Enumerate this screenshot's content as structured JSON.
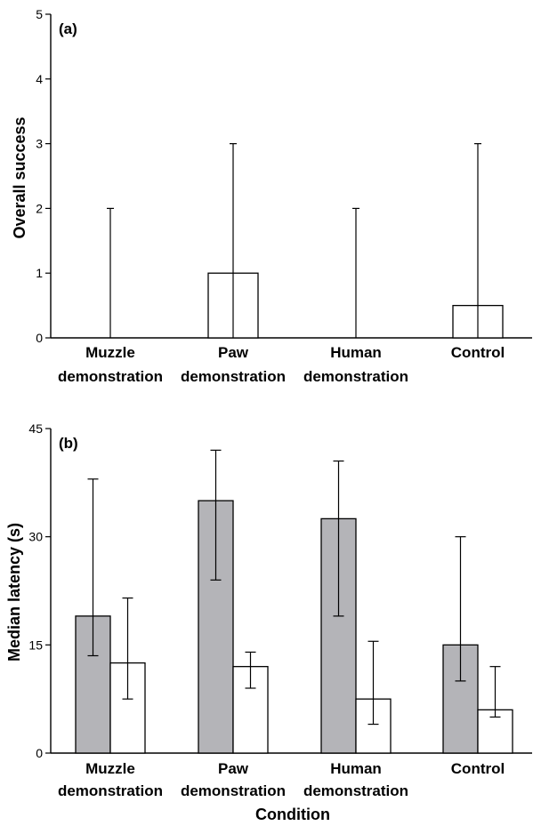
{
  "chart_data": [
    {
      "type": "bar",
      "panel_label": "(a)",
      "ylabel": "Overall success",
      "xlabel": "",
      "ylim": [
        0,
        5
      ],
      "yticks": [
        "0",
        "1",
        "2",
        "3",
        "4",
        "5"
      ],
      "categories": [
        [
          "Muzzle",
          "demonstration"
        ],
        [
          "Paw",
          "demonstration"
        ],
        [
          "Human",
          "demonstration"
        ],
        [
          "Control"
        ]
      ],
      "series": [
        {
          "fill": "#ffffff",
          "values": [
            0,
            1,
            0,
            0.5
          ],
          "err_low": [
            0,
            0,
            0,
            0
          ],
          "err_high": [
            2,
            3,
            2,
            3
          ]
        }
      ],
      "grid": false
    },
    {
      "type": "bar",
      "panel_label": "(b)",
      "ylabel": "Median latency (s)",
      "xlabel": "Condition",
      "ylim": [
        0,
        45
      ],
      "yticks": [
        "0",
        "15",
        "30",
        "45"
      ],
      "categories": [
        [
          "Muzzle",
          "demonstration"
        ],
        [
          "Paw",
          "demonstration"
        ],
        [
          "Human",
          "demonstration"
        ],
        [
          "Control"
        ]
      ],
      "series": [
        {
          "fill": "#b4b4b8",
          "values": [
            19,
            35,
            32.5,
            15
          ],
          "err_low": [
            13.5,
            24,
            19,
            10
          ],
          "err_high": [
            38,
            42,
            40.5,
            30
          ]
        },
        {
          "fill": "#ffffff",
          "values": [
            12.5,
            12,
            7.5,
            6
          ],
          "err_low": [
            7.5,
            9,
            4,
            5
          ],
          "err_high": [
            21.5,
            14,
            15.5,
            12
          ]
        }
      ],
      "grid": false
    }
  ]
}
